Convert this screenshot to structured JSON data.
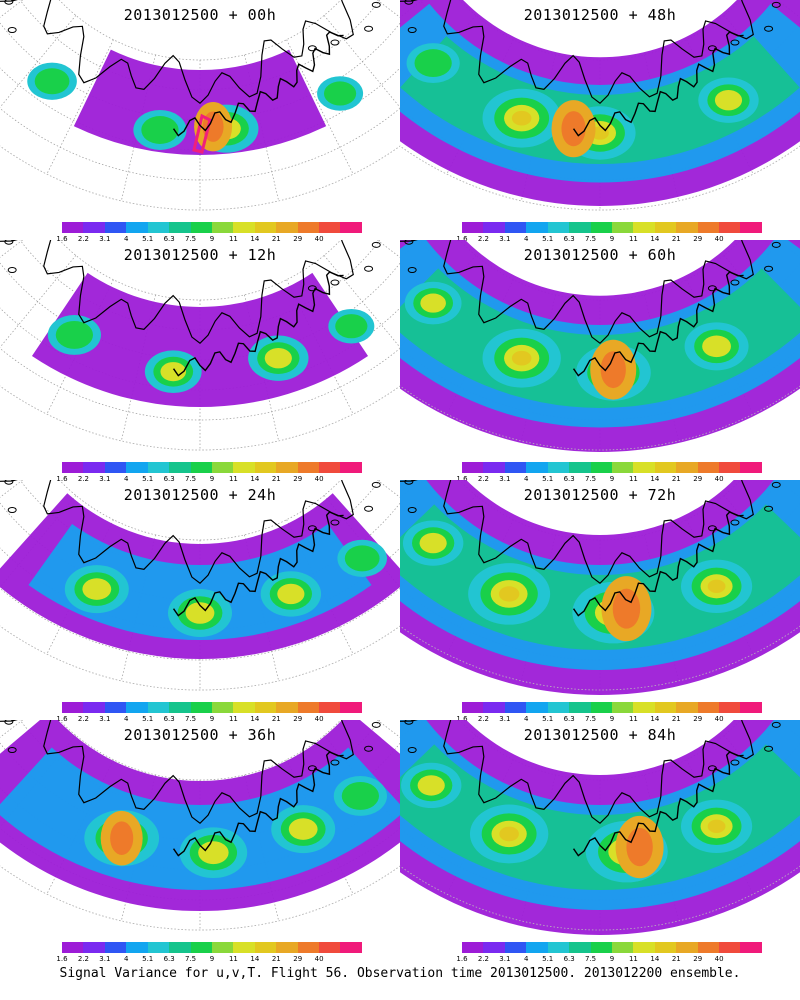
{
  "panels": [
    {
      "title": "2013012500 + 00h",
      "spread": 0.0,
      "blobs": [
        [
          -0.6,
          0.45,
          0.6
        ],
        [
          -0.15,
          0.55,
          0.7
        ],
        [
          0.1,
          0.5,
          1.0
        ],
        [
          0.55,
          0.55,
          0.5
        ]
      ],
      "hot": [
        [
          0.05,
          0.45,
          0.9
        ]
      ],
      "box": true
    },
    {
      "title": "2013012500 + 48h",
      "spread": 0.85,
      "blobs": [
        [
          -0.3,
          0.5,
          1.4
        ],
        [
          0.0,
          0.55,
          1.2
        ],
        [
          0.5,
          0.55,
          0.9
        ],
        [
          -0.7,
          0.4,
          0.7
        ]
      ],
      "hot": [
        [
          -0.1,
          0.5,
          1.2
        ]
      ],
      "box": false
    },
    {
      "title": "2013012500 + 12h",
      "spread": 0.2,
      "blobs": [
        [
          -0.5,
          0.45,
          0.7
        ],
        [
          -0.1,
          0.55,
          0.8
        ],
        [
          0.3,
          0.5,
          0.9
        ],
        [
          0.6,
          0.55,
          0.5
        ]
      ],
      "hot": [],
      "box": false
    },
    {
      "title": "2013012500 + 60h",
      "spread": 0.95,
      "blobs": [
        [
          -0.3,
          0.5,
          1.4
        ],
        [
          0.05,
          0.55,
          1.3
        ],
        [
          0.45,
          0.55,
          1.0
        ],
        [
          -0.7,
          0.4,
          0.8
        ]
      ],
      "hot": [
        [
          0.05,
          0.5,
          1.3
        ]
      ],
      "box": false
    },
    {
      "title": "2013012500 + 24h",
      "spread": 0.4,
      "blobs": [
        [
          -0.4,
          0.5,
          1.0
        ],
        [
          0.0,
          0.55,
          1.0
        ],
        [
          0.35,
          0.5,
          0.9
        ],
        [
          0.65,
          0.55,
          0.6
        ]
      ],
      "hot": [],
      "box": false
    },
    {
      "title": "2013012500 + 72h",
      "spread": 1.0,
      "blobs": [
        [
          -0.35,
          0.5,
          1.5
        ],
        [
          0.05,
          0.55,
          1.5
        ],
        [
          0.45,
          0.55,
          1.2
        ],
        [
          -0.7,
          0.4,
          0.9
        ]
      ],
      "hot": [
        [
          0.1,
          0.5,
          1.5
        ]
      ],
      "box": false
    },
    {
      "title": "2013012500 + 36h",
      "spread": 0.6,
      "blobs": [
        [
          -0.3,
          0.5,
          1.3
        ],
        [
          0.05,
          0.55,
          1.1
        ],
        [
          0.4,
          0.5,
          1.0
        ],
        [
          0.65,
          0.5,
          0.7
        ]
      ],
      "hot": [
        [
          -0.3,
          0.5,
          1.1
        ]
      ],
      "box": false
    },
    {
      "title": "2013012500 + 84h",
      "spread": 1.0,
      "blobs": [
        [
          -0.35,
          0.5,
          1.4
        ],
        [
          0.1,
          0.55,
          1.5
        ],
        [
          0.45,
          0.55,
          1.2
        ],
        [
          -0.7,
          0.45,
          0.9
        ]
      ],
      "hot": [
        [
          0.15,
          0.5,
          1.4
        ]
      ],
      "box": false
    }
  ],
  "colorbar": {
    "labels": [
      "1.6",
      "2.2",
      "3.1",
      "4",
      "5.1",
      "6.3",
      "7.5",
      "9",
      "11",
      "14",
      "21",
      "29",
      "40"
    ],
    "colors": [
      "#9d1cd7",
      "#7a2af0",
      "#2f56f4",
      "#12a5f0",
      "#22c5d2",
      "#15c48c",
      "#19d04a",
      "#8ad83a",
      "#d8e028",
      "#e2c820",
      "#e8a825",
      "#ee7a2a",
      "#f04a3c",
      "#f01a7a"
    ]
  },
  "footer": "Signal Variance for u,v,T. Flight 56. Observation time 2013012500. 2013012200 ensemble."
}
